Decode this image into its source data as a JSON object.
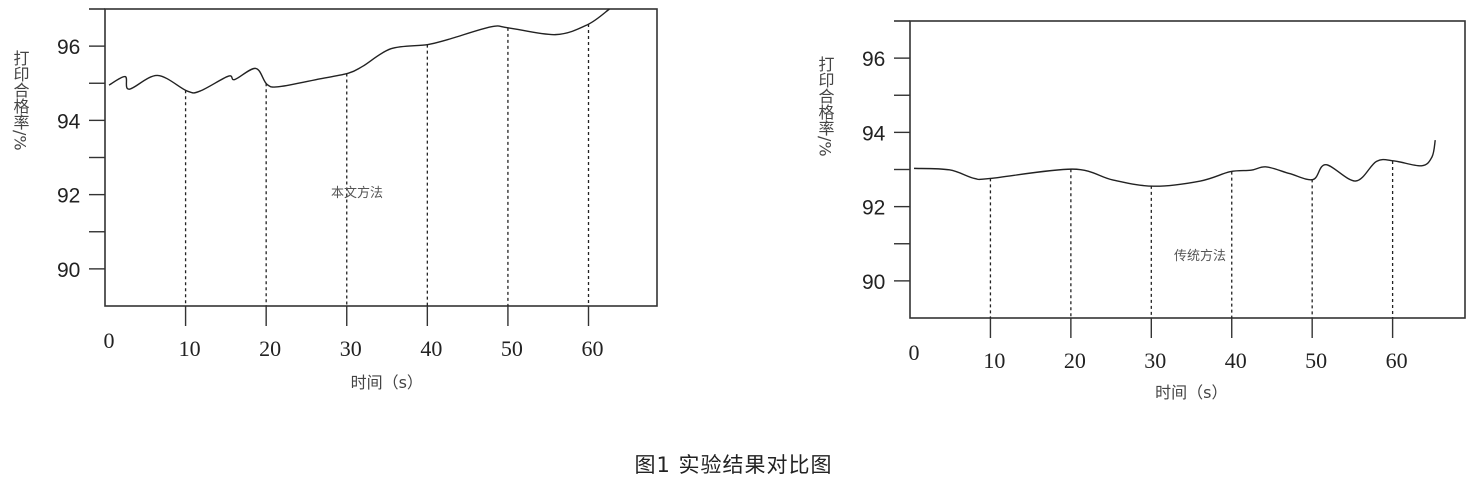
{
  "caption": "图1  实验结果对比图",
  "chart_data": [
    {
      "type": "line",
      "annotation": "本文方法",
      "xlabel": "时间（s）",
      "ylabel": "打印合格率/%",
      "xticks": [
        0,
        10,
        20,
        30,
        40,
        50,
        60
      ],
      "yticks": [
        90,
        92,
        94,
        96
      ],
      "xlim": [
        0,
        68.5
      ],
      "ylim": [
        89,
        97
      ],
      "grid": false,
      "dashed_drop_lines_at": [
        10,
        20,
        30,
        40,
        50,
        60
      ],
      "x": [
        0.5,
        2.5,
        3.0,
        6.5,
        10.2,
        11.8,
        15.3,
        16.1,
        18.7,
        20.1,
        21.7,
        26.7,
        30.2,
        32.0,
        35.5,
        40.0,
        42.6,
        47.9,
        50.1,
        55.9,
        59.9,
        62.6
      ],
      "y": [
        94.95,
        95.18,
        94.84,
        95.21,
        94.79,
        94.79,
        95.19,
        95.1,
        95.4,
        94.97,
        94.91,
        95.12,
        95.27,
        95.46,
        95.93,
        96.04,
        96.18,
        96.52,
        96.49,
        96.31,
        96.58,
        97.0
      ],
      "color": "#222222"
    },
    {
      "type": "line",
      "annotation": "传统方法",
      "xlabel": "时间（s）",
      "ylabel": "打印合格率/%",
      "xticks": [
        0,
        10,
        20,
        30,
        40,
        50,
        60
      ],
      "yticks": [
        90,
        92,
        94,
        96
      ],
      "xlim": [
        0,
        69
      ],
      "ylim": [
        89,
        97
      ],
      "grid": false,
      "dashed_drop_lines_at": [
        10,
        20,
        30,
        40,
        50,
        60
      ],
      "x": [
        0.5,
        4.9,
        8.0,
        10.0,
        20.2,
        25.2,
        30.3,
        36.1,
        39.8,
        42.4,
        44.3,
        47.2,
        50.1,
        51.7,
        55.4,
        58.0,
        60.2,
        63.6,
        64.9,
        65.3
      ],
      "y": [
        93.03,
        92.99,
        92.76,
        92.76,
        93.01,
        92.72,
        92.55,
        92.69,
        92.94,
        92.98,
        93.07,
        92.89,
        92.73,
        93.13,
        92.69,
        93.22,
        93.23,
        93.1,
        93.34,
        93.79
      ],
      "color": "#222222"
    }
  ]
}
